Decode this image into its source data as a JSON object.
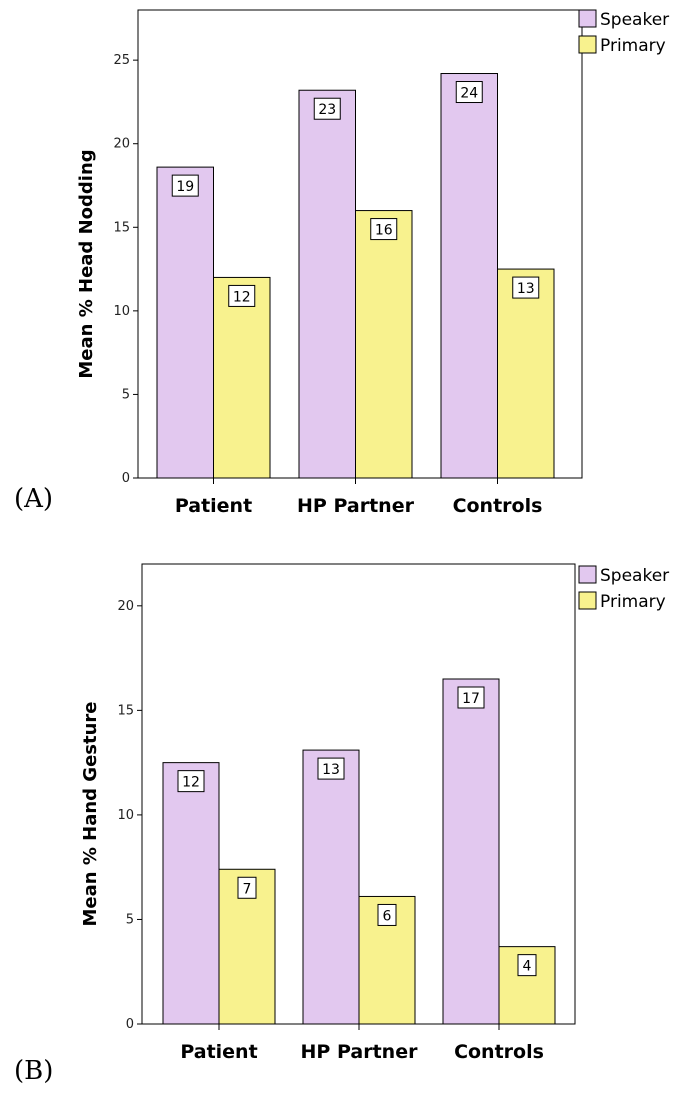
{
  "chart_data": [
    {
      "type": "bar",
      "panel_label": "(A)",
      "categories": [
        "Patient",
        "HP Partner",
        "Controls"
      ],
      "series": [
        {
          "name": "Speaker",
          "color": "#e2c8ef",
          "values": [
            18.6,
            23.2,
            24.2
          ],
          "labels": [
            "19",
            "23",
            "24"
          ]
        },
        {
          "name": "Primary",
          "color": "#f8f28e",
          "values": [
            12.0,
            16.0,
            12.5
          ],
          "labels": [
            "12",
            "16",
            "13"
          ]
        }
      ],
      "ylabel": "Mean % Head Nodding",
      "ylim": [
        0,
        28
      ],
      "yticks": [
        0,
        5,
        10,
        15,
        20,
        25
      ],
      "legend": "top-right",
      "grid": false
    },
    {
      "type": "bar",
      "panel_label": "(B)",
      "categories": [
        "Patient",
        "HP Partner",
        "Controls"
      ],
      "series": [
        {
          "name": "Speaker",
          "color": "#e2c8ef",
          "values": [
            12.5,
            13.1,
            16.5
          ],
          "labels": [
            "12",
            "13",
            "17"
          ]
        },
        {
          "name": "Primary",
          "color": "#f8f28e",
          "values": [
            7.4,
            6.1,
            3.7
          ],
          "labels": [
            "7",
            "6",
            "4"
          ]
        }
      ],
      "ylabel": "Mean % Hand Gesture",
      "ylim": [
        0,
        22
      ],
      "yticks": [
        0,
        5,
        10,
        15,
        20
      ],
      "legend": "top-right",
      "grid": false
    }
  ]
}
